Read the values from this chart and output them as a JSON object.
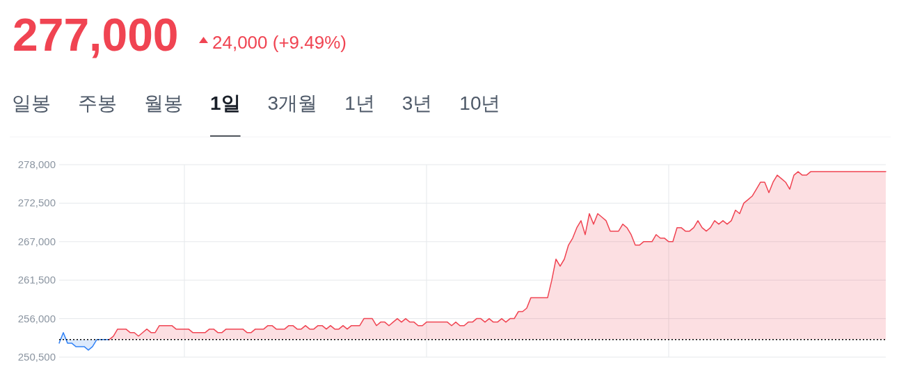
{
  "chart_data": {
    "type": "area",
    "title": "277,000",
    "subtitle": "24,000 (+9.49%)",
    "annotations": [
      "일봉",
      "주봉",
      "월봉",
      "1일",
      "3개월",
      "1년",
      "3년",
      "10년"
    ],
    "categories": [
      null,
      null,
      null,
      null,
      null,
      null,
      null,
      null,
      null,
      null,
      null,
      null,
      null,
      null,
      null,
      null,
      null,
      null,
      null,
      null,
      null,
      null,
      null,
      null,
      null,
      null,
      null,
      null,
      null,
      null,
      null,
      null,
      null,
      null,
      null,
      null,
      null,
      null,
      null,
      null,
      null,
      null,
      null,
      null,
      null,
      null,
      null,
      null,
      null,
      null,
      null,
      null,
      null,
      null,
      null,
      null,
      null,
      null,
      null,
      null,
      null,
      null,
      null,
      null,
      null,
      null,
      null,
      null,
      null,
      null,
      null,
      null,
      null,
      null,
      null,
      null,
      null,
      null,
      null,
      null,
      null,
      null,
      null,
      null,
      null,
      null,
      null,
      null,
      null,
      null,
      null,
      null,
      null,
      null,
      null,
      null,
      null,
      null,
      null,
      null,
      null,
      null,
      null,
      null,
      null,
      null,
      null,
      null,
      null,
      null,
      null,
      null,
      null,
      null,
      null,
      null,
      null,
      null,
      null,
      null,
      null,
      null,
      null,
      null,
      null,
      null,
      null,
      null,
      null,
      null,
      null,
      null,
      null,
      null,
      null,
      null,
      null,
      null,
      null,
      null,
      null,
      null,
      null,
      null,
      null,
      null,
      null,
      null,
      null,
      null,
      null,
      null,
      null,
      null,
      null,
      null,
      null,
      null,
      null,
      null,
      null,
      null,
      null,
      null,
      null,
      null,
      null,
      null,
      null,
      null,
      null,
      null,
      null,
      null,
      null,
      null,
      null,
      null,
      null,
      null,
      null,
      null,
      null,
      null,
      null,
      null,
      null,
      null,
      null,
      null,
      null,
      null,
      null,
      null,
      null,
      null,
      null,
      null,
      null
    ],
    "ylim": [
      250500,
      278000
    ],
    "yticks": [
      {
        "value": 250500,
        "label": "250,500"
      },
      {
        "value": 256000,
        "label": "256,000"
      },
      {
        "value": 261500,
        "label": "261,500"
      },
      {
        "value": 267000,
        "label": "267,000"
      },
      {
        "value": 272500,
        "label": "272,500"
      },
      {
        "value": 278000,
        "label": "278,000"
      }
    ],
    "grid": true,
    "tick_labels": "y",
    "marker": "none",
    "line_style": "solid",
    "ref_lines": [
      {
        "axis": "y",
        "value": 253000,
        "line_style": "dotted",
        "color": "#000000"
      }
    ],
    "series": [
      {
        "color": "#3182f6",
        "values": [
          252500,
          254000,
          252500,
          252500,
          252000,
          252000,
          252000,
          251500,
          252000,
          253000,
          253000,
          253000,
          253000,
          null,
          null,
          null,
          null,
          null,
          null,
          null,
          null,
          null,
          null,
          null,
          null,
          null,
          null,
          null,
          null,
          null,
          null,
          null,
          null,
          null,
          null,
          null,
          null,
          null,
          null,
          null,
          null,
          null,
          null,
          null,
          null,
          null,
          null,
          null,
          null,
          null,
          null,
          null,
          null,
          null,
          null,
          null,
          null,
          null,
          null,
          null,
          null,
          null,
          null,
          null,
          null,
          null,
          null,
          null,
          null,
          null,
          null,
          null,
          null,
          null,
          null,
          null,
          null,
          null,
          null,
          null,
          null,
          null,
          null,
          null,
          null,
          null,
          null,
          null,
          null,
          null,
          null,
          null,
          null,
          null,
          null,
          null,
          null,
          null,
          null,
          null,
          null,
          null,
          null,
          null,
          null,
          null,
          null,
          null,
          null,
          null,
          null,
          null,
          null,
          null,
          null,
          null,
          null,
          null,
          null,
          null,
          null,
          null,
          null,
          null,
          null,
          null,
          null,
          null,
          null,
          null,
          null,
          null,
          null,
          null,
          null,
          null,
          null,
          null,
          null,
          null,
          null,
          null,
          null,
          null,
          null,
          null,
          null,
          null,
          null,
          null,
          null,
          null,
          null,
          null,
          null,
          null,
          null,
          null,
          null,
          null,
          null,
          null,
          null,
          null,
          null,
          null,
          null,
          null,
          null,
          null,
          null,
          null,
          null,
          null,
          null,
          null,
          null,
          null,
          null,
          null,
          null,
          null,
          null,
          null,
          null,
          null,
          null,
          null,
          null,
          null,
          null,
          null,
          null,
          null,
          null,
          null,
          null,
          null,
          null
        ]
      },
      {
        "color": "#f04452",
        "values": [
          null,
          null,
          null,
          null,
          null,
          null,
          null,
          null,
          null,
          null,
          null,
          null,
          253000,
          253500,
          254500,
          254500,
          254500,
          254000,
          254000,
          253500,
          254000,
          254500,
          254000,
          254000,
          255000,
          255000,
          255000,
          255000,
          254500,
          254500,
          254500,
          254500,
          254000,
          254000,
          254000,
          254000,
          254500,
          254500,
          254000,
          254000,
          254500,
          254500,
          254500,
          254500,
          254500,
          254000,
          254000,
          254500,
          254500,
          254500,
          255000,
          255000,
          254500,
          254500,
          254500,
          255000,
          255000,
          254500,
          254500,
          255000,
          254500,
          254500,
          255000,
          255000,
          254500,
          255000,
          254500,
          254500,
          255000,
          254500,
          255000,
          255000,
          255000,
          256000,
          256000,
          256000,
          255000,
          255500,
          255500,
          255000,
          255500,
          256000,
          255500,
          256000,
          255500,
          255500,
          255000,
          255000,
          255500,
          255500,
          255500,
          255500,
          255500,
          255500,
          255000,
          255500,
          255000,
          255000,
          255500,
          255500,
          256000,
          256000,
          255500,
          256000,
          255500,
          255500,
          256000,
          255500,
          256000,
          256000,
          257000,
          257000,
          257500,
          259000,
          259000,
          259000,
          259000,
          259000,
          261500,
          264500,
          263500,
          264500,
          266500,
          267500,
          269000,
          270000,
          268000,
          271000,
          269500,
          271000,
          270500,
          270000,
          268500,
          268500,
          268500,
          269500,
          269000,
          268000,
          266500,
          266500,
          267000,
          267000,
          267000,
          268000,
          267500,
          267500,
          267000,
          267000,
          269000,
          269000,
          268500,
          268500,
          269000,
          270000,
          269000,
          268500,
          269000,
          270000,
          269500,
          270000,
          269500,
          270000,
          271500,
          271000,
          272500,
          273000,
          273500,
          274500,
          275500,
          275500,
          274000,
          275500,
          276500,
          276000,
          275500,
          274500,
          276500,
          277000,
          276500,
          276500,
          277000,
          277000,
          277000,
          277000,
          277000,
          277000,
          277000,
          277000,
          277000,
          277000,
          277000,
          277000,
          277000,
          277000,
          277000,
          277000,
          277000,
          277000,
          277000
        ]
      }
    ]
  }
}
